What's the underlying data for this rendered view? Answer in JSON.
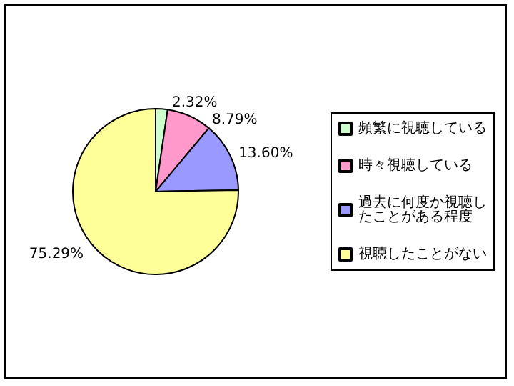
{
  "chart_data": {
    "type": "pie",
    "categories": [
      "頻繁に視聴している",
      "時々視聴している",
      "過去に何度か視聴したことがある程度",
      "視聴したことがない"
    ],
    "values": [
      2.32,
      8.79,
      13.6,
      75.29
    ],
    "value_labels": [
      "2.32%",
      "8.79%",
      "13.60%",
      "75.29%"
    ],
    "colors": [
      "#ccffcc",
      "#ff99cc",
      "#9999ff",
      "#ffff99"
    ],
    "legend": "right"
  }
}
